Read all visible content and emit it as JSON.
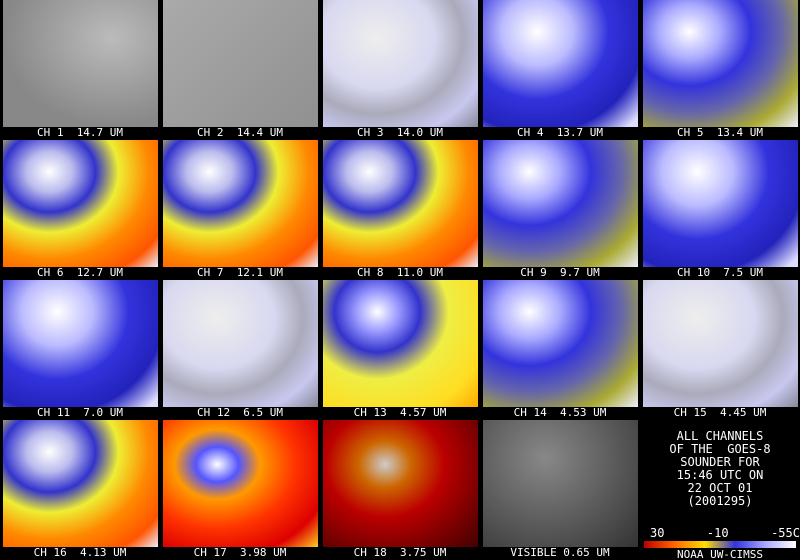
{
  "panels": [
    {
      "label": "CH 1  14.7 UM",
      "palette": "gray"
    },
    {
      "label": "CH 2  14.4 UM",
      "palette": "flatgray"
    },
    {
      "label": "CH 3  14.0 UM",
      "palette": "whiteblue"
    },
    {
      "label": "CH 4  13.7 UM",
      "palette": "blue"
    },
    {
      "label": "CH 5  13.4 UM",
      "palette": "blueyellow"
    },
    {
      "label": "CH 6  12.7 UM",
      "palette": "warm"
    },
    {
      "label": "CH 7  12.1 UM",
      "palette": "warm"
    },
    {
      "label": "CH 8  11.0 UM",
      "palette": "warm"
    },
    {
      "label": "CH 9  9.7 UM",
      "palette": "blueyellow"
    },
    {
      "label": "CH 10  7.5 UM",
      "palette": "blue"
    },
    {
      "label": "CH 11  7.0 UM",
      "palette": "blue"
    },
    {
      "label": "CH 12  6.5 UM",
      "palette": "whiteblue"
    },
    {
      "label": "CH 13  4.57 UM",
      "palette": "yellow"
    },
    {
      "label": "CH 14  4.53 UM",
      "palette": "blueyellow"
    },
    {
      "label": "CH 15  4.45 UM",
      "palette": "whiteblue"
    },
    {
      "label": "CH 16  4.13 UM",
      "palette": "warm"
    },
    {
      "label": "CH 17  3.98 UM",
      "palette": "hot"
    },
    {
      "label": "CH 18  3.75 UM",
      "palette": "red"
    },
    {
      "label": "VISIBLE 0.65 UM",
      "palette": "darkgray"
    }
  ],
  "info": {
    "lines": [
      "ALL CHANNELS",
      "OF THE  GOES-8",
      "SOUNDER FOR",
      "15:46 UTC ON",
      "22 OCT 01",
      "(2001295)"
    ],
    "scale_labels": [
      "30",
      "-10",
      "-55C"
    ],
    "credit": "NOAA UW-CIMSS"
  }
}
